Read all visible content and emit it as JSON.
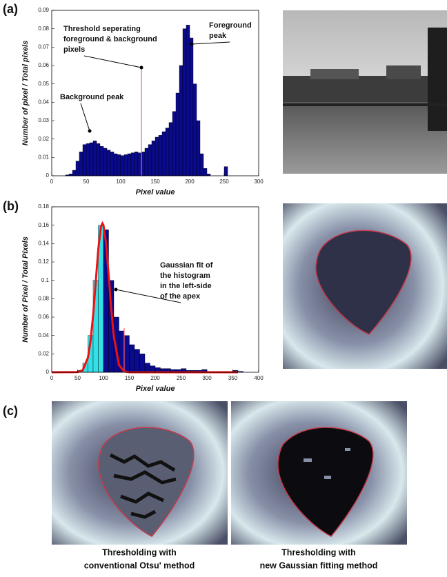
{
  "chart_data": [
    {
      "type": "histogram",
      "bins": [
        20,
        25,
        30,
        35,
        40,
        45,
        50,
        55,
        60,
        65,
        70,
        75,
        80,
        85,
        90,
        95,
        100,
        105,
        110,
        115,
        120,
        125,
        130,
        135,
        140,
        145,
        150,
        155,
        160,
        165,
        170,
        175,
        180,
        185,
        190,
        195,
        200,
        205,
        210,
        215,
        220,
        225,
        230,
        235,
        240,
        245,
        250,
        255
      ],
      "values": [
        0.0005,
        0.001,
        0.003,
        0.008,
        0.013,
        0.017,
        0.0175,
        0.018,
        0.019,
        0.0175,
        0.016,
        0.015,
        0.014,
        0.013,
        0.012,
        0.0115,
        0.011,
        0.0115,
        0.012,
        0.0125,
        0.013,
        0.0125,
        0.013,
        0.015,
        0.017,
        0.019,
        0.021,
        0.022,
        0.024,
        0.026,
        0.029,
        0.035,
        0.045,
        0.06,
        0.08,
        0.082,
        0.075,
        0.05,
        0.03,
        0.012,
        0.004,
        0.001,
        0,
        0,
        0,
        0,
        0.005
      ],
      "color": "#0a0a8c",
      "threshold": {
        "x": 130,
        "top": 0.06,
        "color": "#ff6060"
      },
      "xlabel": "Pixel value",
      "ylabel": "Number of pixel / Total pixels",
      "xlim": [
        0,
        300
      ],
      "xticks": [
        0,
        50,
        100,
        150,
        200,
        250,
        300
      ],
      "ylim": [
        0,
        0.09
      ],
      "yticks": [
        0,
        0.01,
        0.02,
        0.03,
        0.04,
        0.05,
        0.06,
        0.07,
        0.08,
        0.09
      ],
      "annotations": [
        {
          "lines": [
            "Threshold seperating",
            "foreground & background",
            "pixels"
          ]
        },
        {
          "lines": [
            "Foreground",
            "peak"
          ]
        },
        {
          "lines": [
            "Background peak"
          ]
        }
      ]
    },
    {
      "type": "histogram",
      "bins": [
        50,
        60,
        70,
        80,
        90,
        100,
        110,
        120,
        130,
        140,
        150,
        160,
        170,
        180,
        190,
        200,
        210,
        220,
        230,
        240,
        250,
        260,
        270,
        280,
        290,
        300,
        310,
        320,
        330,
        340,
        350,
        360,
        370
      ],
      "values": [
        0.002,
        0.01,
        0.04,
        0.1,
        0.16,
        0.155,
        0.1,
        0.06,
        0.045,
        0.04,
        0.03,
        0.025,
        0.02,
        0.01,
        0.007,
        0.005,
        0.004,
        0.004,
        0.003,
        0.003,
        0.004,
        0.002,
        0.002,
        0.002,
        0.003,
        0.001,
        0.001,
        0.001,
        0.001,
        0.001,
        0.002,
        0.001
      ],
      "color": "#0a0a8c",
      "left_color": "#33e0e8",
      "split_x": 100,
      "threshold": {
        "x": 140,
        "top": 0.048,
        "color": "#ff6060"
      },
      "fit": {
        "color": "#ee1111",
        "x": [
          0,
          50,
          60,
          70,
          75,
          80,
          85,
          90,
          95,
          98,
          100,
          105,
          110,
          115,
          120,
          130,
          140,
          150,
          200,
          360
        ],
        "values": [
          0,
          0.0002,
          0.0023,
          0.016,
          0.034,
          0.062,
          0.098,
          0.134,
          0.158,
          0.162,
          0.16,
          0.14,
          0.106,
          0.069,
          0.039,
          0.008,
          0.0009,
          0,
          0,
          0
        ]
      },
      "xlabel": "Pixel value",
      "ylabel": "Number of Pixel / Total Pixels",
      "xlim": [
        0,
        400
      ],
      "xticks": [
        0,
        50,
        100,
        150,
        200,
        250,
        300,
        350,
        400
      ],
      "ylim": [
        0,
        0.18
      ],
      "yticks": [
        0,
        0.02,
        0.04,
        0.06,
        0.08,
        0.1,
        0.12,
        0.14,
        0.16,
        0.18
      ],
      "annotations": [
        {
          "lines": [
            "Gaussian fit of",
            "the histogram",
            "in the left-side",
            "of the apex"
          ]
        }
      ]
    }
  ],
  "figure": {
    "panel_labels": [
      "(a)",
      "(b)",
      "(c)"
    ],
    "captions": [
      [
        "Thresholding with",
        "conventional Otsu' method"
      ],
      [
        "Thresholding with",
        "new Gaussian fitting method"
      ]
    ]
  }
}
